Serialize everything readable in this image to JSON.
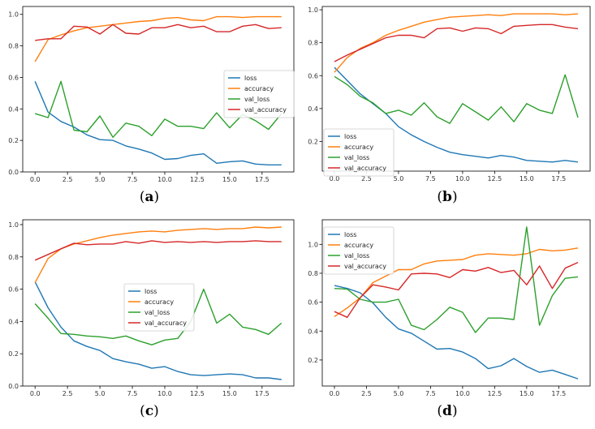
{
  "chart_data": [
    {
      "type": "line",
      "caption": "(a)",
      "x": [
        0,
        1,
        2,
        3,
        4,
        5,
        6,
        7,
        8,
        9,
        10,
        11,
        12,
        13,
        14,
        15,
        16,
        17,
        18,
        19
      ],
      "xlim": [
        -0.95,
        19.95
      ],
      "ylim": [
        0,
        1.05
      ],
      "xticks": [
        "0.0",
        "2.5",
        "5.0",
        "7.5",
        "10.0",
        "12.5",
        "15.0",
        "17.5"
      ],
      "xtick_values": [
        0,
        2.5,
        5,
        7.5,
        10,
        12.5,
        15,
        17.5
      ],
      "yticks": [
        "0.0",
        "0.2",
        "0.4",
        "0.6",
        "0.8",
        "1.0"
      ],
      "ytick_values": [
        0,
        0.2,
        0.4,
        0.6,
        0.8,
        1.0
      ],
      "legend_position": "center-right",
      "series": [
        {
          "name": "loss",
          "color": "#1f77b4",
          "values": [
            0.575,
            0.38,
            0.32,
            0.285,
            0.235,
            0.205,
            0.2,
            0.165,
            0.145,
            0.12,
            0.08,
            0.085,
            0.105,
            0.115,
            0.055,
            0.065,
            0.07,
            0.05,
            0.045,
            0.045
          ]
        },
        {
          "name": "accuracy",
          "color": "#ff7f0e",
          "values": [
            0.7,
            0.84,
            0.87,
            0.895,
            0.915,
            0.925,
            0.935,
            0.945,
            0.955,
            0.96,
            0.975,
            0.98,
            0.965,
            0.96,
            0.985,
            0.985,
            0.98,
            0.985,
            0.985,
            0.985
          ]
        },
        {
          "name": "val_loss",
          "color": "#2ca02c",
          "values": [
            0.37,
            0.345,
            0.575,
            0.265,
            0.255,
            0.355,
            0.22,
            0.31,
            0.29,
            0.23,
            0.335,
            0.29,
            0.29,
            0.275,
            0.375,
            0.28,
            0.365,
            0.325,
            0.27,
            0.37
          ]
        },
        {
          "name": "val_accuracy",
          "color": "#d62728",
          "values": [
            0.835,
            0.845,
            0.845,
            0.925,
            0.92,
            0.875,
            0.935,
            0.88,
            0.875,
            0.915,
            0.915,
            0.935,
            0.915,
            0.925,
            0.89,
            0.89,
            0.925,
            0.935,
            0.91,
            0.915
          ]
        }
      ]
    },
    {
      "type": "line",
      "caption": "(b)",
      "x": [
        0,
        1,
        2,
        3,
        4,
        5,
        6,
        7,
        8,
        9,
        10,
        11,
        12,
        13,
        14,
        15,
        16,
        17,
        18,
        19
      ],
      "xlim": [
        -0.95,
        19.95
      ],
      "ylim": [
        0.02,
        1.02
      ],
      "xticks": [
        "0.0",
        "2.5",
        "5.0",
        "7.5",
        "10.0",
        "12.5",
        "15.0",
        "17.5"
      ],
      "xtick_values": [
        0,
        2.5,
        5,
        7.5,
        10,
        12.5,
        15,
        17.5
      ],
      "yticks": [
        "0.2",
        "0.4",
        "0.6",
        "0.8",
        "1.0"
      ],
      "ytick_values": [
        0.2,
        0.4,
        0.6,
        0.8,
        1.0
      ],
      "legend_position": "lower-left",
      "series": [
        {
          "name": "loss",
          "color": "#1f77b4",
          "values": [
            0.65,
            0.57,
            0.49,
            0.43,
            0.37,
            0.29,
            0.24,
            0.2,
            0.165,
            0.135,
            0.12,
            0.11,
            0.1,
            0.115,
            0.105,
            0.085,
            0.08,
            0.075,
            0.085,
            0.075
          ]
        },
        {
          "name": "accuracy",
          "color": "#ff7f0e",
          "values": [
            0.62,
            0.71,
            0.765,
            0.8,
            0.845,
            0.875,
            0.9,
            0.925,
            0.94,
            0.955,
            0.96,
            0.965,
            0.97,
            0.965,
            0.975,
            0.975,
            0.975,
            0.975,
            0.97,
            0.975
          ]
        },
        {
          "name": "val_loss",
          "color": "#2ca02c",
          "values": [
            0.595,
            0.545,
            0.475,
            0.435,
            0.37,
            0.39,
            0.36,
            0.435,
            0.35,
            0.31,
            0.43,
            0.38,
            0.33,
            0.41,
            0.32,
            0.43,
            0.39,
            0.37,
            0.605,
            0.345
          ]
        },
        {
          "name": "val_accuracy",
          "color": "#d62728",
          "values": [
            0.685,
            0.725,
            0.76,
            0.795,
            0.83,
            0.845,
            0.845,
            0.83,
            0.885,
            0.89,
            0.87,
            0.89,
            0.885,
            0.855,
            0.9,
            0.905,
            0.91,
            0.91,
            0.895,
            0.885
          ]
        }
      ]
    },
    {
      "type": "line",
      "caption": "(c)",
      "x": [
        0,
        1,
        2,
        3,
        4,
        5,
        6,
        7,
        8,
        9,
        10,
        11,
        12,
        13,
        14,
        15,
        16,
        17,
        18,
        19
      ],
      "xlim": [
        -0.95,
        19.95
      ],
      "ylim": [
        0,
        1.03
      ],
      "xticks": [
        "0.0",
        "2.5",
        "5.0",
        "7.5",
        "10.0",
        "12.5",
        "15.0",
        "17.5"
      ],
      "xtick_values": [
        0,
        2.5,
        5,
        7.5,
        10,
        12.5,
        15,
        17.5
      ],
      "yticks": [
        "0.0",
        "0.2",
        "0.4",
        "0.6",
        "0.8",
        "1.0"
      ],
      "ytick_values": [
        0,
        0.2,
        0.4,
        0.6,
        0.8,
        1.0
      ],
      "legend_position": "center-right",
      "series": [
        {
          "name": "loss",
          "color": "#1f77b4",
          "values": [
            0.645,
            0.485,
            0.365,
            0.28,
            0.245,
            0.22,
            0.17,
            0.15,
            0.135,
            0.11,
            0.12,
            0.09,
            0.07,
            0.065,
            0.07,
            0.075,
            0.07,
            0.05,
            0.05,
            0.04
          ]
        },
        {
          "name": "accuracy",
          "color": "#ff7f0e",
          "values": [
            0.64,
            0.79,
            0.85,
            0.88,
            0.9,
            0.92,
            0.935,
            0.945,
            0.955,
            0.96,
            0.955,
            0.965,
            0.97,
            0.975,
            0.97,
            0.975,
            0.975,
            0.985,
            0.98,
            0.985
          ]
        },
        {
          "name": "val_loss",
          "color": "#2ca02c",
          "values": [
            0.51,
            0.42,
            0.325,
            0.32,
            0.31,
            0.305,
            0.295,
            0.31,
            0.28,
            0.255,
            0.285,
            0.295,
            0.4,
            0.6,
            0.39,
            0.445,
            0.365,
            0.35,
            0.32,
            0.39
          ]
        },
        {
          "name": "val_accuracy",
          "color": "#d62728",
          "values": [
            0.78,
            0.815,
            0.85,
            0.885,
            0.875,
            0.88,
            0.88,
            0.895,
            0.885,
            0.9,
            0.89,
            0.895,
            0.89,
            0.895,
            0.89,
            0.895,
            0.895,
            0.9,
            0.895,
            0.895
          ]
        }
      ]
    },
    {
      "type": "line",
      "caption": "(d)",
      "x": [
        0,
        1,
        2,
        3,
        4,
        5,
        6,
        7,
        8,
        9,
        10,
        11,
        12,
        13,
        14,
        15,
        16,
        17,
        18,
        19
      ],
      "xlim": [
        -0.95,
        19.95
      ],
      "ylim": [
        0.02,
        1.17
      ],
      "xticks": [
        "0.0",
        "2.5",
        "5.0",
        "7.5",
        "10.0",
        "12.5",
        "15.0",
        "17.5"
      ],
      "xtick_values": [
        0,
        2.5,
        5,
        7.5,
        10,
        12.5,
        15,
        17.5
      ],
      "yticks": [
        "0.2",
        "0.4",
        "0.6",
        "0.8",
        "1.0"
      ],
      "ytick_values": [
        0.2,
        0.4,
        0.6,
        0.8,
        1.0
      ],
      "legend_position": "upper-left",
      "series": [
        {
          "name": "loss",
          "color": "#1f77b4",
          "values": [
            0.715,
            0.695,
            0.665,
            0.595,
            0.495,
            0.415,
            0.385,
            0.33,
            0.275,
            0.28,
            0.255,
            0.21,
            0.14,
            0.16,
            0.21,
            0.155,
            0.115,
            0.13,
            0.1,
            0.07
          ]
        },
        {
          "name": "accuracy",
          "color": "#ff7f0e",
          "values": [
            0.5,
            0.56,
            0.63,
            0.735,
            0.78,
            0.825,
            0.825,
            0.865,
            0.885,
            0.89,
            0.895,
            0.925,
            0.935,
            0.93,
            0.925,
            0.935,
            0.965,
            0.955,
            0.96,
            0.975
          ]
        },
        {
          "name": "val_loss",
          "color": "#2ca02c",
          "values": [
            0.695,
            0.69,
            0.62,
            0.6,
            0.6,
            0.62,
            0.44,
            0.41,
            0.48,
            0.565,
            0.53,
            0.39,
            0.49,
            0.49,
            0.48,
            1.12,
            0.44,
            0.645,
            0.765,
            0.775
          ]
        },
        {
          "name": "val_accuracy",
          "color": "#d62728",
          "values": [
            0.535,
            0.495,
            0.63,
            0.72,
            0.705,
            0.685,
            0.795,
            0.8,
            0.795,
            0.77,
            0.825,
            0.815,
            0.84,
            0.805,
            0.82,
            0.72,
            0.85,
            0.695,
            0.835,
            0.875
          ]
        }
      ]
    }
  ]
}
